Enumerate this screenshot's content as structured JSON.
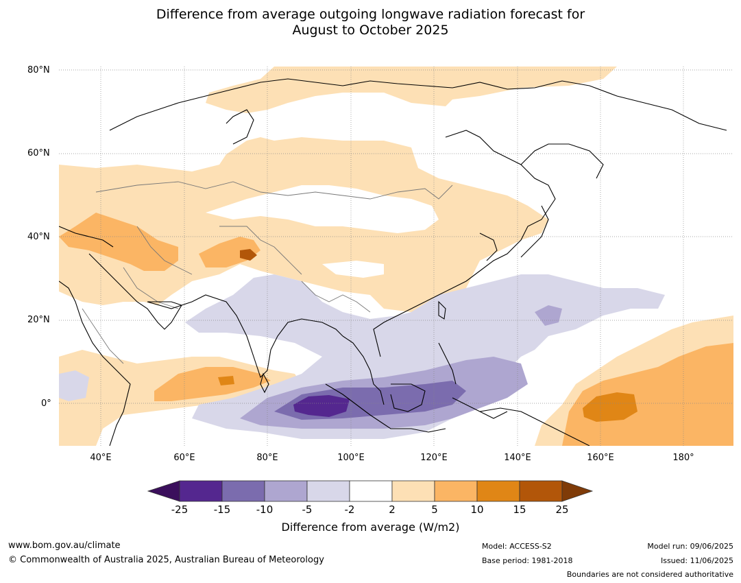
{
  "title_line1": "Difference from average outgoing longwave radiation forecast for",
  "title_line2": "August to October 2025",
  "lat_labels": [
    "80°N",
    "60°N",
    "40°N",
    "20°N",
    "0°"
  ],
  "lon_labels": [
    "40°E",
    "60°E",
    "80°E",
    "100°E",
    "120°E",
    "140°E",
    "160°E",
    "180°"
  ],
  "colorbar": {
    "ticks": [
      "-25",
      "-15",
      "-10",
      "-5",
      "-2",
      "2",
      "5",
      "10",
      "15",
      "25"
    ],
    "colors": [
      "#3b0f5c",
      "#54278f",
      "#7b6cae",
      "#aea6d0",
      "#d8d7e9",
      "#ffffff",
      "#fde0b5",
      "#fbb564",
      "#e08616",
      "#b25609",
      "#7f3b08"
    ],
    "title": "Difference from average (W/m2)"
  },
  "footer": {
    "website": "www.bom.gov.au/climate",
    "copyright": "© Commonwealth of Australia 2025, Australian Bureau of Meteorology",
    "model": "Model: ACCESS-S2",
    "base_period": "Base period: 1981-2018",
    "model_run": "Model run: 09/06/2025",
    "issued": "Issued: 11/06/2025",
    "disclaimer": "Boundaries are not considered authoritative"
  }
}
